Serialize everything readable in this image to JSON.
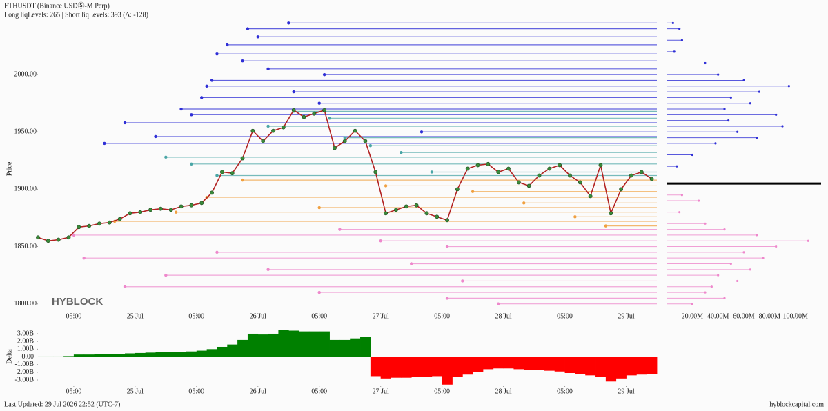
{
  "header": {
    "title": "ETHUSDT (Binance USDⓈ-M Perp)",
    "subtitle": "Long liqLevels: 265 | Short liqLevels: 393 (Δ: -128)"
  },
  "watermark": "HYBLOCK",
  "footer": {
    "left": "Last Updated: 29 Jul 2026 22:52 (UTC-7)",
    "right": "hyblockcapital.com"
  },
  "chart_data": [
    {
      "type": "line",
      "ylabel": "Price",
      "x": [
        5,
        7,
        9,
        11,
        13,
        15,
        17,
        19,
        21,
        23,
        25,
        27,
        29,
        31,
        33,
        35,
        37,
        39,
        41,
        43,
        45,
        47,
        49,
        51,
        53,
        55,
        57,
        59,
        61,
        63,
        65,
        67,
        69,
        71,
        73,
        75,
        77,
        79,
        81,
        83,
        85,
        87,
        89,
        91,
        93,
        95,
        97,
        99,
        101,
        103,
        105,
        107,
        109,
        111,
        113,
        115,
        117,
        119,
        121,
        123,
        125
      ],
      "xlim": [
        5,
        126
      ],
      "xticks": [
        {
          "value": 12,
          "label": "05:00"
        },
        {
          "value": 24,
          "label": "25 Jul"
        },
        {
          "value": 36,
          "label": "05:00"
        },
        {
          "value": 48,
          "label": "26 Jul"
        },
        {
          "value": 60,
          "label": "05:00"
        },
        {
          "value": 72,
          "label": "27 Jul"
        },
        {
          "value": 84,
          "label": "05:00"
        },
        {
          "value": 96,
          "label": "28 Jul"
        },
        {
          "value": 108,
          "label": "05:00"
        },
        {
          "value": 120,
          "label": "29 Jul"
        }
      ],
      "ylim": [
        1792,
        2050
      ],
      "yticks": [
        {
          "value": 1800,
          "label": "1800.00"
        },
        {
          "value": 1850,
          "label": "1850.00"
        },
        {
          "value": 1900,
          "label": "1900.00"
        },
        {
          "value": 1950,
          "label": "1950.00"
        },
        {
          "value": 2000,
          "label": "2000.00"
        }
      ],
      "series": [
        {
          "color": "#b22222",
          "marker_color": "#3a8a3a",
          "values": [
            1858,
            1855,
            1856,
            1858,
            1867,
            1868,
            1870,
            1871,
            1874,
            1879,
            1880,
            1882,
            1883,
            1882,
            1885,
            1886,
            1888,
            1897,
            1915,
            1914,
            1927,
            1951,
            1942,
            1951,
            1954,
            1969,
            1963,
            1966,
            1969,
            1936,
            1942,
            1951,
            1942,
            1915,
            1879,
            1882,
            1885,
            1886,
            1879,
            1876,
            1873,
            1900,
            1918,
            1921,
            1922,
            1915,
            1918,
            1906,
            1903,
            1912,
            1918,
            1921,
            1912,
            1906,
            1894,
            1921,
            1879,
            1900,
            1912,
            1915,
            1909
          ]
        }
      ],
      "levels": [
        {
          "color": "#2f2fd6",
          "values": [
            2045,
            2040,
            2033,
            2026,
            2018,
            2012,
            2005,
            2000,
            1995,
            1990,
            1985,
            1980,
            1975,
            1970,
            1965,
            1958,
            1950,
            1946,
            1940
          ],
          "x": [
            54,
            46,
            48,
            42,
            40,
            45,
            50,
            61,
            39,
            38,
            55,
            37,
            60,
            33,
            35,
            22,
            80,
            28,
            18
          ]
        },
        {
          "color": "#4aa6a6",
          "values": [
            1968,
            1962,
            1955,
            1945,
            1938,
            1932,
            1928,
            1922,
            1915,
            1912
          ],
          "x": [
            55,
            62,
            50,
            65,
            70,
            76,
            30,
            35,
            82,
            40
          ]
        },
        {
          "color": "#f0a040",
          "values": [
            1908,
            1903,
            1898,
            1893,
            1888,
            1884,
            1880,
            1876,
            1872,
            1868
          ],
          "x": [
            45,
            73,
            90,
            38,
            100,
            60,
            32,
            110,
            20,
            116
          ]
        },
        {
          "color": "#ee88cc",
          "values": [
            1865,
            1860,
            1855,
            1850,
            1845,
            1840,
            1835,
            1830,
            1825,
            1820,
            1815,
            1810,
            1805,
            1800
          ],
          "x": [
            64,
            12,
            72,
            85,
            40,
            14,
            78,
            50,
            30,
            88,
            22,
            60,
            85,
            95
          ]
        }
      ]
    },
    {
      "type": "hbar",
      "xlim": [
        0,
        120
      ],
      "xticks": [
        {
          "value": 20,
          "label": "20.00M"
        },
        {
          "value": 40,
          "label": "40.00M"
        },
        {
          "value": 60,
          "label": "60.00M"
        },
        {
          "value": 80,
          "label": "80.00M"
        },
        {
          "value": 100,
          "label": "100.00M"
        }
      ],
      "ylim": [
        1792,
        2050
      ],
      "hline": 1905,
      "series": [
        {
          "color": "#2f2fd6",
          "y": [
            2045,
            2040,
            2030,
            2020,
            2010,
            2000,
            1995,
            1990,
            1985,
            1980,
            1975,
            1970,
            1965,
            1960,
            1955,
            1950,
            1945,
            1940,
            1930,
            1920
          ],
          "values": [
            5,
            10,
            12,
            6,
            30,
            40,
            60,
            95,
            72,
            50,
            65,
            45,
            85,
            48,
            90,
            55,
            70,
            38,
            20,
            8
          ]
        },
        {
          "color": "#ee88cc",
          "y": [
            1895,
            1890,
            1880,
            1870,
            1865,
            1860,
            1855,
            1850,
            1845,
            1840,
            1835,
            1830,
            1825,
            1820,
            1815,
            1810,
            1805,
            1800
          ],
          "values": [
            12,
            25,
            10,
            30,
            45,
            70,
            110,
            85,
            60,
            75,
            50,
            65,
            40,
            55,
            35,
            30,
            45,
            20
          ]
        }
      ]
    },
    {
      "type": "area",
      "ylabel": "Delta",
      "x": [
        5,
        7,
        9,
        11,
        13,
        15,
        17,
        19,
        21,
        23,
        25,
        27,
        29,
        31,
        33,
        35,
        37,
        39,
        41,
        43,
        45,
        47,
        49,
        51,
        53,
        55,
        57,
        59,
        61,
        63,
        65,
        67,
        69,
        71,
        73,
        75,
        77,
        79,
        81,
        83,
        85,
        87,
        89,
        91,
        93,
        95,
        97,
        99,
        101,
        103,
        105,
        107,
        109,
        111,
        113,
        115,
        117,
        119,
        121,
        123,
        125
      ],
      "values": [
        0.05,
        0.05,
        0.05,
        0.1,
        0.3,
        0.3,
        0.35,
        0.4,
        0.4,
        0.45,
        0.5,
        0.55,
        0.6,
        0.6,
        0.65,
        0.7,
        0.8,
        1.0,
        1.3,
        1.6,
        2.2,
        3.0,
        2.9,
        3.0,
        3.5,
        3.4,
        3.3,
        3.3,
        3.3,
        2.2,
        2.2,
        2.4,
        2.6,
        -2.5,
        -2.8,
        -2.7,
        -2.7,
        -2.6,
        -2.6,
        -2.5,
        -3.6,
        -2.6,
        -2.3,
        -2.0,
        -1.6,
        -1.5,
        -1.5,
        -1.6,
        -1.7,
        -1.7,
        -1.8,
        -1.9,
        -2.1,
        -2.2,
        -2.4,
        -2.6,
        -3.2,
        -2.8,
        -2.4,
        -2.3,
        -2.2
      ],
      "positive_color": "#008000",
      "negative_color": "#ff0000",
      "xlim": [
        5,
        126
      ],
      "xticks": [
        {
          "value": 12,
          "label": "05:00"
        },
        {
          "value": 24,
          "label": "25 Jul"
        },
        {
          "value": 36,
          "label": "05:00"
        },
        {
          "value": 48,
          "label": "26 Jul"
        },
        {
          "value": 60,
          "label": "05:00"
        },
        {
          "value": 72,
          "label": "27 Jul"
        },
        {
          "value": 84,
          "label": "05:00"
        },
        {
          "value": 96,
          "label": "28 Jul"
        },
        {
          "value": 108,
          "label": "05:00"
        },
        {
          "value": 120,
          "label": "29 Jul"
        }
      ],
      "ylim": [
        -3.8,
        4.25
      ],
      "yticks": [
        {
          "value": 3,
          "label": "3.00B"
        },
        {
          "value": 2,
          "label": "2.00B"
        },
        {
          "value": 1,
          "label": "1.00B"
        },
        {
          "value": 0,
          "label": "0.00"
        },
        {
          "value": -1,
          "label": "-1.00B"
        },
        {
          "value": -2,
          "label": "-2.00B"
        },
        {
          "value": -3,
          "label": "-3.00B"
        }
      ]
    }
  ]
}
